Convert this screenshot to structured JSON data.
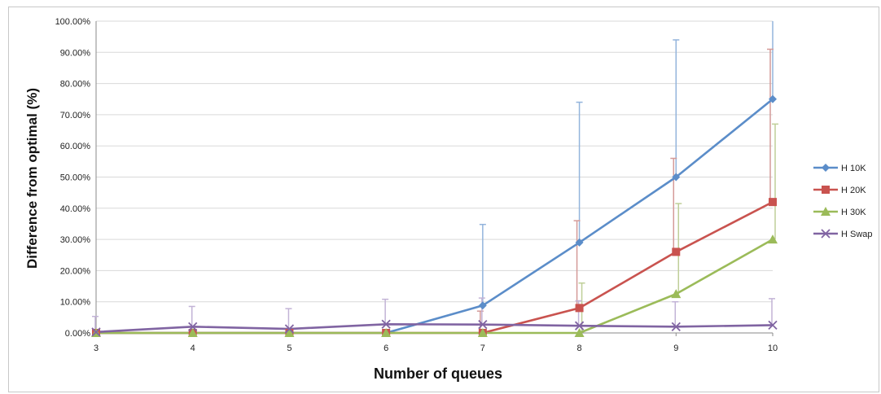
{
  "chart_data": {
    "type": "line",
    "xlabel": "Number of queues",
    "ylabel": "Difference from optimal (%)",
    "x": [
      3,
      4,
      5,
      6,
      7,
      8,
      9,
      10
    ],
    "ylim": [
      0,
      100
    ],
    "y_tick_labels": [
      "0.00%",
      "10.00%",
      "20.00%",
      "30.00%",
      "40.00%",
      "50.00%",
      "60.00%",
      "70.00%",
      "80.00%",
      "90.00%",
      "100.00%"
    ],
    "x_tick_labels": [
      "3",
      "4",
      "5",
      "6",
      "7",
      "8",
      "9",
      "10"
    ],
    "grid": "horizontal",
    "legend_position": "right",
    "series": [
      {
        "name": "H 10K",
        "color": "#5b8dc9",
        "marker": "diamond",
        "values": [
          0,
          0,
          0,
          0,
          8.8,
          29,
          50,
          75
        ],
        "error": [
          0,
          0,
          0,
          0,
          26,
          45,
          44,
          26
        ]
      },
      {
        "name": "H 20K",
        "color": "#c9534f",
        "marker": "square",
        "values": [
          0,
          0,
          0,
          0,
          0,
          8,
          26,
          42
        ],
        "error": [
          0,
          0,
          0,
          0,
          7,
          28,
          30,
          49
        ]
      },
      {
        "name": "H 30K",
        "color": "#9bbb59",
        "marker": "triangle",
        "values": [
          0,
          0,
          0,
          0,
          0,
          0,
          12.5,
          30
        ],
        "error": [
          0,
          0,
          0,
          0,
          0,
          16,
          29,
          37
        ]
      },
      {
        "name": "H Swap",
        "color": "#8064a2",
        "marker": "x",
        "values": [
          0.3,
          2,
          1.3,
          2.8,
          2.7,
          2.3,
          2,
          2.5
        ],
        "error": [
          5,
          6.5,
          6.5,
          8,
          8.5,
          8,
          8,
          8.5
        ]
      }
    ]
  }
}
